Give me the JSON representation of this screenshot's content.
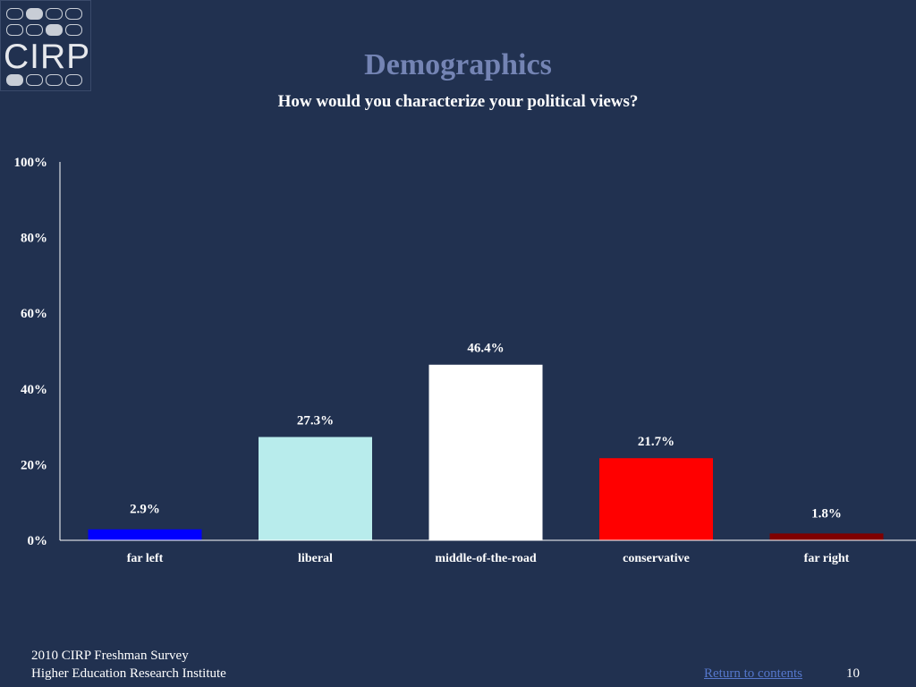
{
  "logo": {
    "text": "CIRP"
  },
  "header": {
    "title": "Demographics",
    "subtitle": "How would you characterize your political views?"
  },
  "chart_data": {
    "type": "bar",
    "categories": [
      "far left",
      "liberal",
      "middle-of-the-road",
      "conservative",
      "far right"
    ],
    "values": [
      2.9,
      27.3,
      46.4,
      21.7,
      1.8
    ],
    "value_labels": [
      "2.9%",
      "27.3%",
      "46.4%",
      "21.7%",
      "1.8%"
    ],
    "bar_colors": [
      "#0000ff",
      "#b8ecec",
      "#ffffff",
      "#ff0000",
      "#800000"
    ],
    "ylim": [
      0,
      100
    ],
    "yticks": [
      0,
      20,
      40,
      60,
      80,
      100
    ],
    "ytick_labels": [
      "0%",
      "20%",
      "40%",
      "60%",
      "80%",
      "100%"
    ],
    "grid": false
  },
  "footer": {
    "line1": "2010 CIRP Freshman Survey",
    "line2": "Higher Education Research Institute",
    "link": "Return to contents",
    "page": "10"
  }
}
